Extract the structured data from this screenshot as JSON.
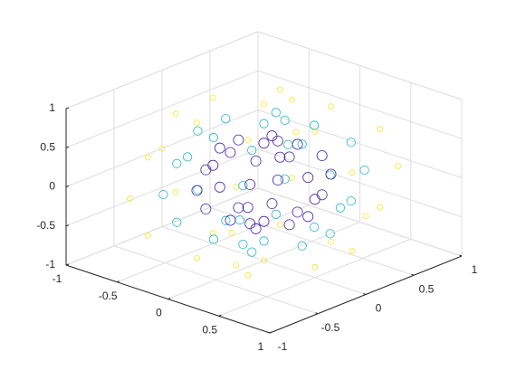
{
  "chart_data": {
    "type": "scatter3",
    "xlim": [
      -1,
      1
    ],
    "ylim": [
      -1,
      1
    ],
    "zlim": [
      -1,
      1
    ],
    "xticks": [
      -1,
      -0.5,
      0,
      0.5,
      1
    ],
    "yticks": [
      -1,
      -0.5,
      0,
      0.5,
      1
    ],
    "zticks": [
      -1,
      -0.5,
      0,
      0.5,
      1
    ],
    "grid": true,
    "series": [
      {
        "color": "#f2e829",
        "size": 20,
        "x": [
          0,
          0.5,
          0.25,
          -0.25,
          -0.5,
          -0.25,
          0.25,
          0.866,
          0.433,
          -0.433,
          -0.866,
          -0.433,
          0.433,
          1,
          0.5,
          -0.5,
          -1,
          -0.5,
          0.5,
          0.866,
          0.433,
          -0.433,
          -0.866,
          -0.433,
          0.433,
          0.5,
          0.25,
          -0.25,
          -0.5,
          -0.25,
          0.25,
          0
        ],
        "y": [
          0,
          0,
          0.433,
          0.433,
          0,
          -0.433,
          -0.433,
          0,
          0.75,
          0.75,
          0,
          -0.75,
          -0.75,
          0,
          0.866,
          0.866,
          0,
          -0.866,
          -0.866,
          0,
          0.75,
          0.75,
          0,
          -0.75,
          -0.75,
          0,
          0.433,
          0.433,
          0,
          -0.433,
          -0.433,
          0
        ],
        "z": [
          -1,
          -0.866,
          -0.866,
          -0.866,
          -0.866,
          -0.866,
          -0.866,
          -0.5,
          -0.5,
          -0.5,
          -0.5,
          -0.5,
          -0.5,
          0,
          0,
          0,
          0,
          0,
          0,
          0.5,
          0.5,
          0.5,
          0.5,
          0.5,
          0.5,
          0.866,
          0.866,
          0.866,
          0.866,
          0.866,
          0.866,
          1
        ]
      },
      {
        "color": "#1fb8c0",
        "size": 50,
        "x": [
          0,
          0.375,
          0.188,
          -0.188,
          -0.375,
          -0.188,
          0.188,
          0.65,
          0.325,
          -0.325,
          -0.65,
          -0.325,
          0.325,
          0.75,
          0.375,
          -0.375,
          -0.75,
          -0.375,
          0.375,
          0.65,
          0.325,
          -0.325,
          -0.65,
          -0.325,
          0.325,
          0.375,
          0.188,
          -0.188,
          -0.375,
          -0.188,
          0.188,
          0
        ],
        "y": [
          0,
          0,
          0.325,
          0.325,
          0,
          -0.325,
          -0.325,
          0,
          0.563,
          0.563,
          0,
          -0.563,
          -0.563,
          0,
          0.65,
          0.65,
          0,
          -0.65,
          -0.65,
          0,
          0.563,
          0.563,
          0,
          -0.563,
          -0.563,
          0,
          0.325,
          0.325,
          0,
          -0.325,
          -0.325,
          0
        ],
        "z": [
          -0.75,
          -0.65,
          -0.65,
          -0.65,
          -0.65,
          -0.65,
          -0.65,
          -0.375,
          -0.375,
          -0.375,
          -0.375,
          -0.375,
          -0.375,
          0,
          0,
          0,
          0,
          0,
          0,
          0.375,
          0.375,
          0.375,
          0.375,
          0.375,
          0.375,
          0.65,
          0.65,
          0.65,
          0.65,
          0.65,
          0.65,
          0.75
        ]
      },
      {
        "color": "#4a2aa8",
        "size": 70,
        "x": [
          0,
          0.25,
          0.125,
          -0.125,
          -0.25,
          -0.125,
          0.125,
          0.433,
          0.217,
          -0.217,
          -0.433,
          -0.217,
          0.217,
          0.5,
          0.25,
          -0.25,
          -0.5,
          -0.25,
          0.25,
          0.433,
          0.217,
          -0.217,
          -0.433,
          -0.217,
          0.217,
          0.25,
          0.125,
          -0.125,
          -0.25,
          -0.125,
          0.125,
          0
        ],
        "y": [
          0,
          0,
          0.217,
          0.217,
          0,
          -0.217,
          -0.217,
          0,
          0.375,
          0.375,
          0,
          -0.375,
          -0.375,
          0,
          0.433,
          0.433,
          0,
          -0.433,
          -0.433,
          0,
          0.375,
          0.375,
          0,
          -0.375,
          -0.375,
          0,
          0.217,
          0.217,
          0,
          -0.217,
          -0.217,
          0
        ],
        "z": [
          -0.5,
          -0.433,
          -0.433,
          -0.433,
          -0.433,
          -0.433,
          -0.433,
          -0.25,
          -0.25,
          -0.25,
          -0.25,
          -0.25,
          -0.25,
          0,
          0,
          0,
          0,
          0,
          0,
          0.25,
          0.25,
          0.25,
          0.25,
          0.25,
          0.25,
          0.433,
          0.433,
          0.433,
          0.433,
          0.433,
          0.433,
          0.5
        ]
      }
    ]
  }
}
